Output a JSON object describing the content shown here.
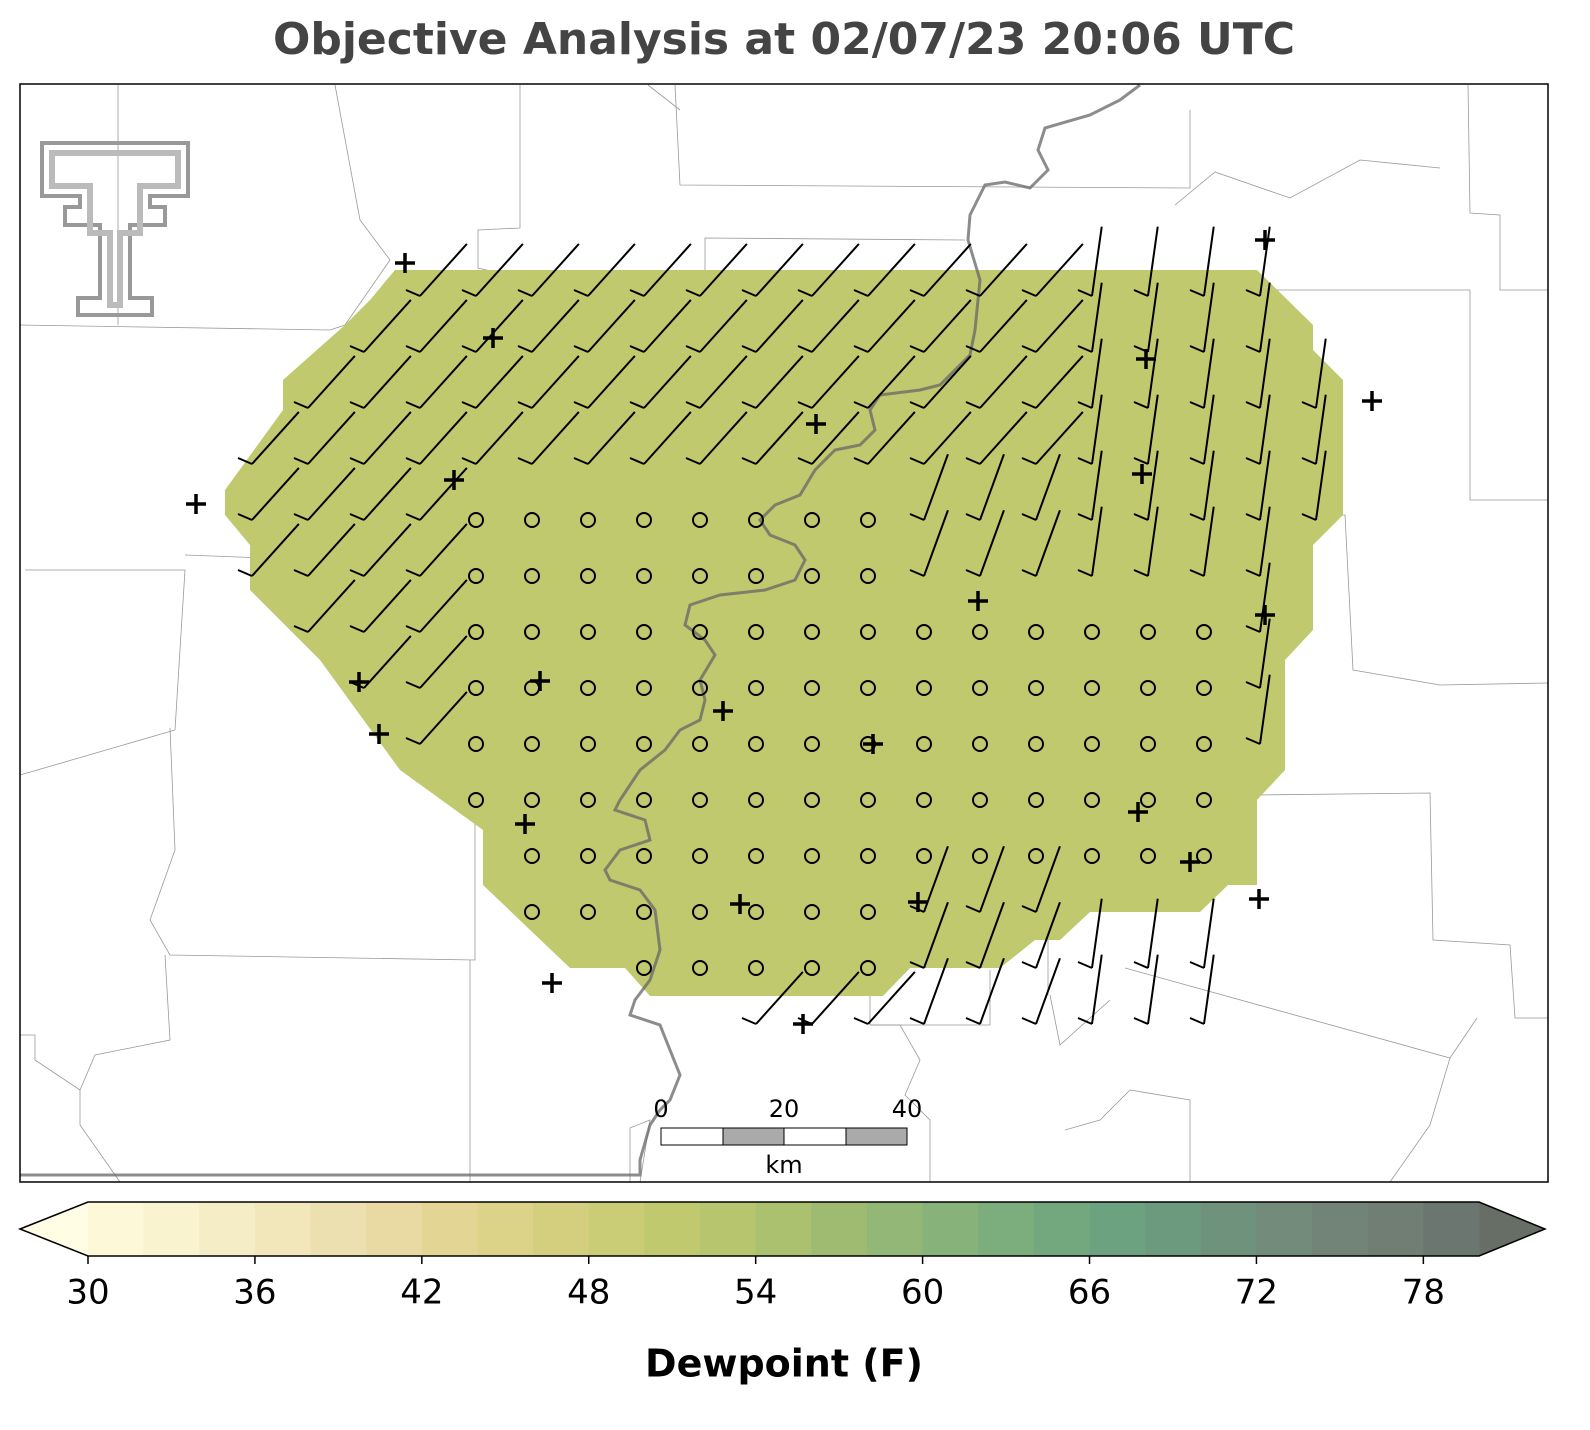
{
  "title": "Objective Analysis at 02/07/23 20:06 UTC",
  "scale_bar": {
    "labels": [
      "0",
      "20",
      "40"
    ],
    "unit": "km"
  },
  "colorbar": {
    "label": "Dewpoint (F)",
    "range": [
      30,
      80
    ],
    "ticks": [
      30,
      36,
      42,
      48,
      54,
      60,
      66,
      72,
      78
    ],
    "colors": [
      "#fcf8d8",
      "#f9f3d0",
      "#f5edc6",
      "#f1e7bb",
      "#ede0b0",
      "#e8daa2",
      "#e3d594",
      "#dcd288",
      "#d4cf7e",
      "#cbcd76",
      "#c1c96f",
      "#b7c56e",
      "#abc170",
      "#9fbb72",
      "#93b776",
      "#87b27a",
      "#7cad7c",
      "#73a87f",
      "#6ca280",
      "#6c9a7e",
      "#6f927c",
      "#728b7a",
      "#728478",
      "#707e74",
      "#6c7670"
    ],
    "under_color": "#fffde4",
    "over_color": "#676e66"
  }
}
